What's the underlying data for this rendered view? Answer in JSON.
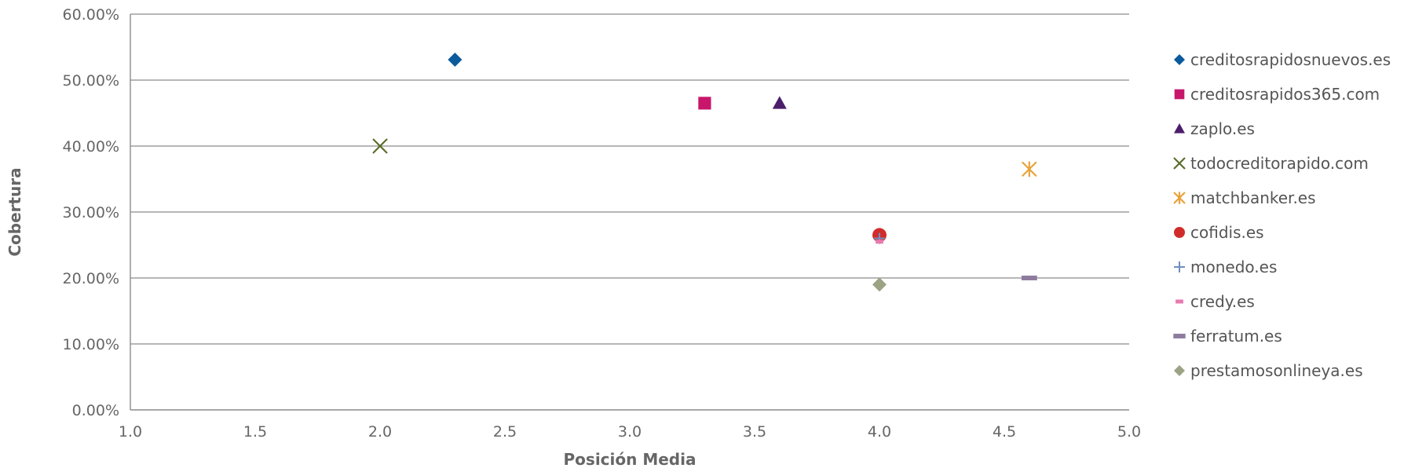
{
  "chart_data": {
    "type": "scatter",
    "xlabel": "Posición Media",
    "ylabel": "Cobertura",
    "xlim": [
      1.0,
      5.0
    ],
    "ylim": [
      0,
      0.6
    ],
    "x_ticks": [
      "1.0",
      "1.5",
      "2.0",
      "2.5",
      "3.0",
      "3.5",
      "4.0",
      "4.5",
      "5.0"
    ],
    "y_ticks": [
      "0.00%",
      "10.00%",
      "20.00%",
      "30.00%",
      "40.00%",
      "50.00%",
      "60.00%"
    ],
    "grid": "horizontal",
    "legend_position": "right",
    "series": [
      {
        "name": "creditosrapidosnuevos.es",
        "marker": "diamond",
        "color": "#0a5a9c",
        "x": 2.3,
        "y": 0.531
      },
      {
        "name": "creditosrapidos365.com",
        "marker": "square",
        "color": "#c8176a",
        "x": 3.3,
        "y": 0.465
      },
      {
        "name": "zaplo.es",
        "marker": "triangle",
        "color": "#4b1d6b",
        "x": 3.6,
        "y": 0.465
      },
      {
        "name": "todocreditorapido.com",
        "marker": "x",
        "color": "#5a6e2a",
        "x": 2.0,
        "y": 0.4
      },
      {
        "name": "matchbanker.es",
        "marker": "asterisk",
        "color": "#e8a23a",
        "x": 4.6,
        "y": 0.365
      },
      {
        "name": "cofidis.es",
        "marker": "circle",
        "color": "#d12c2c",
        "x": 4.0,
        "y": 0.265
      },
      {
        "name": "monedo.es",
        "marker": "plus",
        "color": "#6f8fbf",
        "x": 4.0,
        "y": 0.26
      },
      {
        "name": "credy.es",
        "marker": "dash",
        "color": "#e87ab0",
        "x": 4.0,
        "y": 0.255
      },
      {
        "name": "ferratum.es",
        "marker": "bar",
        "color": "#8e7c9e",
        "x": 4.6,
        "y": 0.2
      },
      {
        "name": "prestamosonlineya.es",
        "marker": "diamond",
        "color": "#9aa484",
        "x": 4.0,
        "y": 0.19
      }
    ]
  }
}
